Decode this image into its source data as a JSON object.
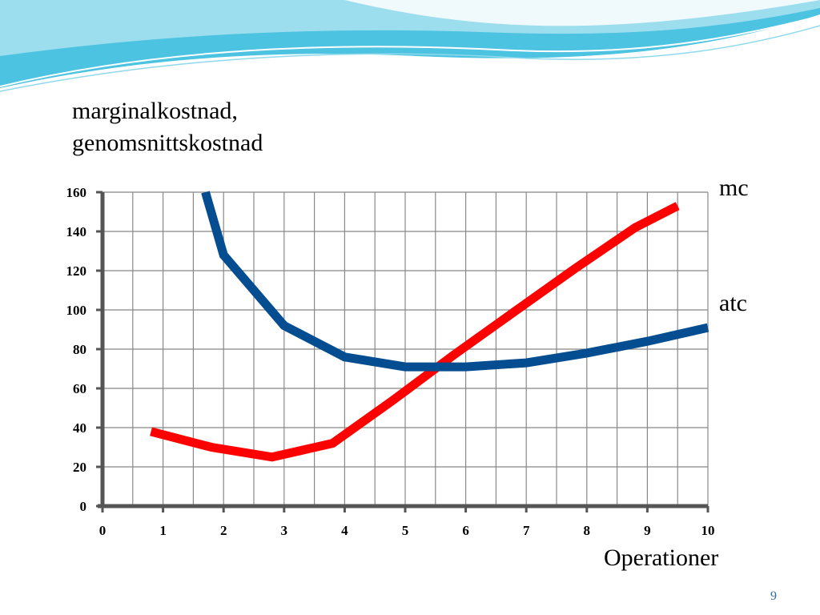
{
  "slide": {
    "page_number": "9",
    "colors": {
      "wave_dark": "#4cc3e0",
      "wave_light": "#bfeaf4",
      "mc": "#ff0000",
      "atc": "#044d91",
      "grid": "#888888",
      "axis": "#555555"
    }
  },
  "chart_data": {
    "type": "line",
    "ylabel": [
      "marginalkostnad,",
      "genomsnittskostnad"
    ],
    "xlabel": "Operationer",
    "xlim": [
      0,
      10
    ],
    "ylim": [
      0,
      160
    ],
    "x_ticks": [
      "0",
      "1",
      "2",
      "3",
      "4",
      "5",
      "6",
      "7",
      "8",
      "9",
      "10"
    ],
    "y_ticks": [
      "0",
      "20",
      "40",
      "60",
      "80",
      "100",
      "120",
      "140",
      "160"
    ],
    "grid": true,
    "series": [
      {
        "name": "mc",
        "color": "#ff0000",
        "points": [
          [
            0.8,
            38
          ],
          [
            1.8,
            30
          ],
          [
            2.8,
            25
          ],
          [
            3.8,
            32
          ],
          [
            4.8,
            54
          ],
          [
            5.8,
            77
          ],
          [
            6.8,
            99
          ],
          [
            7.8,
            121
          ],
          [
            8.8,
            142
          ],
          [
            9.5,
            153
          ]
        ]
      },
      {
        "name": "atc",
        "color": "#044d91",
        "points": [
          [
            1.7,
            160
          ],
          [
            2.0,
            128
          ],
          [
            3.0,
            92
          ],
          [
            4.0,
            76
          ],
          [
            5.0,
            71
          ],
          [
            6.0,
            71
          ],
          [
            7.0,
            73
          ],
          [
            8.0,
            78
          ],
          [
            9.0,
            84
          ],
          [
            10.0,
            91
          ]
        ]
      }
    ]
  }
}
